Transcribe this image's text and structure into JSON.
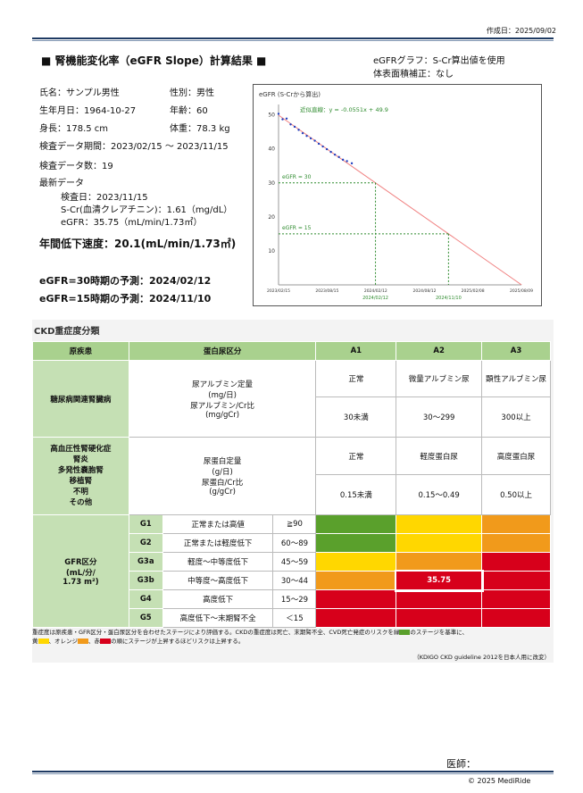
{
  "created": "作成日：2025/09/02",
  "title": "■ 腎機能変化率（eGFR Slope）計算結果 ■",
  "graph_note1": "eGFRグラフ：S-Cr算出値を使用",
  "graph_note2": "体表面積補正：なし",
  "patient": {
    "name": "氏名：サンプル男性",
    "sex": "性別：男性",
    "dob": "生年月日：1964-10-27",
    "age": "年齢：60",
    "height": "身長：178.5 cm",
    "weight": "体重：78.3 kg",
    "period": "検査データ期間：2023/02/15 ～ 2023/11/15",
    "count": "検査データ数：19",
    "latest": "最新データ",
    "latest_date": "検査日：2023/11/15",
    "latest_scr": "S-Cr(血清クレアチニン)：1.61（mg/dL）",
    "latest_egfr": "eGFR：35.75（mL/min/1.73㎡）"
  },
  "annual_decline": "年間低下速度：20.1(mL/min/1.73㎡)",
  "pred30": "eGFR=30時期の予測：2024/02/12",
  "pred15": "eGFR=15時期の予測：2024/11/10",
  "chart_data": {
    "type": "scatter",
    "title": "eGFR (S-Crから算出)",
    "fit_label": "近似直線：y = -0.0551x + 49.9",
    "ref30_label": "eGFR = 30",
    "ref15_label": "eGFR = 15",
    "ylim": [
      0,
      52
    ],
    "yticks": [
      "50",
      "40",
      "30",
      "20",
      "10"
    ],
    "xticks": [
      "2023/02/15",
      "2023/08/15",
      "2024/02/12",
      "2024/08/12",
      "2025/02/08",
      "2025/08/09"
    ],
    "xtick_days": [
      0,
      181,
      362,
      544,
      724,
      905
    ],
    "pred_labels": [
      "2024/02/12",
      "2024/11/10"
    ],
    "fit": {
      "slope": -0.0551,
      "intercept": 49.9
    },
    "points": [
      {
        "x": 0,
        "y": 50.3
      },
      {
        "x": 15,
        "y": 48.7
      },
      {
        "x": 30,
        "y": 48.9
      },
      {
        "x": 45,
        "y": 47.2
      },
      {
        "x": 60,
        "y": 46.5
      },
      {
        "x": 75,
        "y": 45.6
      },
      {
        "x": 90,
        "y": 44.6
      },
      {
        "x": 105,
        "y": 43.8
      },
      {
        "x": 120,
        "y": 43.1
      },
      {
        "x": 135,
        "y": 42.4
      },
      {
        "x": 150,
        "y": 41.5
      },
      {
        "x": 165,
        "y": 40.7
      },
      {
        "x": 180,
        "y": 39.9
      },
      {
        "x": 195,
        "y": 39.1
      },
      {
        "x": 210,
        "y": 38.3
      },
      {
        "x": 225,
        "y": 37.6
      },
      {
        "x": 240,
        "y": 36.8
      },
      {
        "x": 255,
        "y": 36.4
      },
      {
        "x": 273,
        "y": 35.75
      }
    ]
  },
  "ckd": {
    "title": "CKD重症度分類",
    "h_disease": "原疾患",
    "h_protein": "蛋白尿区分",
    "a1": "A1",
    "a2": "A2",
    "a3": "A3",
    "dm": "糖尿病関連腎臓病",
    "dm_measure": "尿アルブミン定量\n(mg/日)\n尿アルブミン/Cr比\n(mg/gCr)",
    "dm_a1": "正常",
    "dm_a2": "微量アルブミン尿",
    "dm_a3": "顕性アルブミン尿",
    "dm_a1v": "30未満",
    "dm_a2v": "30～299",
    "dm_a3v": "300以上",
    "other": "高血圧性腎硬化症\n腎炎\n多発性嚢胞腎\n移植腎\n不明\nその他",
    "other_measure": "尿蛋白定量\n(g/日)\n尿蛋白/Cr比\n(g/gCr)",
    "ot_a1": "正常",
    "ot_a2": "軽度蛋白尿",
    "ot_a3": "高度蛋白尿",
    "ot_a1v": "0.15未満",
    "ot_a2v": "0.15～0.49",
    "ot_a3v": "0.50以上",
    "gfr_label": "GFR区分\n(mL/分/\n1.73 m²)",
    "grades": [
      {
        "g": "G1",
        "desc": "正常または高値",
        "range": "≧90"
      },
      {
        "g": "G2",
        "desc": "正常または軽度低下",
        "range": "60～89"
      },
      {
        "g": "G3a",
        "desc": "軽度～中等度低下",
        "range": "45～59"
      },
      {
        "g": "G3b",
        "desc": "中等度～高度低下",
        "range": "30～44"
      },
      {
        "g": "G4",
        "desc": "高度低下",
        "range": "15～29"
      },
      {
        "g": "G5",
        "desc": "高度低下～末期腎不全",
        "range": "＜15"
      }
    ],
    "current_value": "35.75",
    "note1": "重症度は原疾患・GFR区分・蛋白尿区分を合わせたステージにより評価する。CKDの重症度は死亡、末期腎不全、CVD死亡発症のリスクを緑",
    "note1b": "のステージを基準に、",
    "note2a": "黄",
    "note2b": "、オレンジ",
    "note2c": "、赤",
    "note2d": "の順にステージが上昇するほどリスクは上昇する。",
    "source": "（KDIGO CKD guideline 2012を日本人用に改変）"
  },
  "doctor": "医師：",
  "copyright": "© 2025 MediRide",
  "colors": {
    "green": "#5aa02c",
    "yellow": "#ffd700",
    "orange": "#f19a1b",
    "red": "#d7001b"
  }
}
